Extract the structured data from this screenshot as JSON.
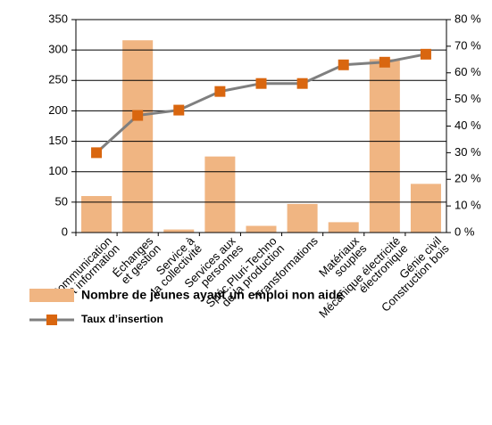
{
  "chart_data": {
    "type": "bar-line",
    "categories": [
      [
        "Communication",
        "et information"
      ],
      [
        "Échanges",
        "et gestion"
      ],
      [
        "Service à",
        "la collectivité"
      ],
      [
        "Services aux",
        "personnes"
      ],
      [
        "Spéc.Pluri-Techno",
        "de la production"
      ],
      [
        "Transformations"
      ],
      [
        "Matériaux",
        "souples"
      ],
      [
        "Mécanique électricité",
        "électronique"
      ],
      [
        "Génie civil",
        "Construction bois"
      ]
    ],
    "series": [
      {
        "name": "Nombre de jeunes ayant un emploi non aidé",
        "type": "bar",
        "color": "#f0b582",
        "values": [
          60,
          316,
          5,
          125,
          11,
          47,
          17,
          285,
          80
        ]
      },
      {
        "name": "Taux d’insertion",
        "type": "line",
        "axis": "y2",
        "color": "#7f7f7f",
        "marker_color": "#d9660f",
        "values": [
          30,
          44,
          46,
          53,
          56,
          56,
          63,
          64,
          67
        ]
      }
    ],
    "ylim": [
      0,
      350
    ],
    "yticks": [
      0,
      50,
      100,
      150,
      200,
      250,
      300,
      350
    ],
    "y2lim": [
      0,
      80
    ],
    "y2ticks": [
      {
        "value": 0,
        "label": "0 %"
      },
      {
        "value": 10,
        "label": "10 %"
      },
      {
        "value": 20,
        "label": "20 %"
      },
      {
        "value": 30,
        "label": "30 %"
      },
      {
        "value": 40,
        "label": "40 %"
      },
      {
        "value": 50,
        "label": "50 %"
      },
      {
        "value": 60,
        "label": "60 %"
      },
      {
        "value": 70,
        "label": "70 %"
      },
      {
        "value": 80,
        "label": "80 %"
      }
    ],
    "grid": true,
    "legend": "bottom-left"
  }
}
